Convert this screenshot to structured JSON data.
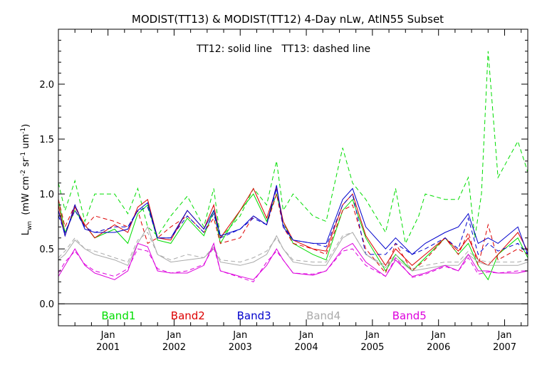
{
  "chart_data": {
    "type": "line",
    "title": "MODIST(TT13) & MODIST(TT12) 4-Day nLw, AtlN55 Subset",
    "annotation": "TT12: solid line   TT13: dashed line",
    "ylabel_main": "L",
    "ylabel_sub": "wn",
    "ylabel_rest": "(mW cm",
    "ylabel_exp1": "-2",
    "ylabel_sr": "sr",
    "ylabel_exp2": "-1",
    "ylabel_um": "um",
    "ylabel_exp3": "-1",
    "ylabel_close": ")",
    "xlim": [
      2000.25,
      2007.35
    ],
    "ylim": [
      -0.2,
      2.5
    ],
    "yticks": [
      0.0,
      0.5,
      1.0,
      1.5,
      2.0
    ],
    "ytick_labels": [
      "0.0",
      "0.5",
      "1.0",
      "1.5",
      "2.0"
    ],
    "xticks": [
      {
        "value": 2001.0,
        "top": "Jan",
        "bottom": "2001"
      },
      {
        "value": 2002.0,
        "top": "Jan",
        "bottom": "2002"
      },
      {
        "value": 2003.0,
        "top": "Jan",
        "bottom": "2003"
      },
      {
        "value": 2004.0,
        "top": "Jan",
        "bottom": "2004"
      },
      {
        "value": 2005.0,
        "top": "Jan",
        "bottom": "2005"
      },
      {
        "value": 2006.0,
        "top": "Jan",
        "bottom": "2006"
      },
      {
        "value": 2007.0,
        "top": "Jan",
        "bottom": "2007"
      }
    ],
    "zero_line": 0.0,
    "colors": {
      "Band1": "#00dd00",
      "Band2": "#dd0000",
      "Band3": "#0000cc",
      "Band4": "#aaaaaa",
      "Band5": "#dd00dd"
    },
    "legend": [
      {
        "name": "Band1",
        "x": 2000.9
      },
      {
        "name": "Band2",
        "x": 2001.95
      },
      {
        "name": "Band3",
        "x": 2002.95
      },
      {
        "name": "Band4",
        "x": 2004.0
      },
      {
        "name": "Band5",
        "x": 2005.3
      }
    ],
    "series": [
      {
        "band": "Band1",
        "style": "solid",
        "x": [
          2000.25,
          2000.35,
          2000.5,
          2000.65,
          2000.8,
          2001.1,
          2001.3,
          2001.45,
          2001.6,
          2001.75,
          2001.95,
          2002.2,
          2002.45,
          2002.6,
          2002.7,
          2003.0,
          2003.2,
          2003.4,
          2003.55,
          2003.65,
          2003.8,
          2004.1,
          2004.3,
          2004.55,
          2004.7,
          2004.9,
          2005.2,
          2005.35,
          2005.6,
          2005.8,
          2006.1,
          2006.3,
          2006.45,
          2006.6,
          2006.75,
          2006.9,
          2007.2,
          2007.35
        ],
        "y": [
          0.95,
          0.65,
          0.85,
          0.72,
          0.6,
          0.68,
          0.55,
          0.82,
          0.9,
          0.58,
          0.55,
          0.78,
          0.62,
          0.85,
          0.55,
          0.85,
          1.0,
          0.75,
          1.0,
          0.75,
          0.55,
          0.45,
          0.4,
          0.85,
          0.95,
          0.6,
          0.3,
          0.45,
          0.3,
          0.42,
          0.6,
          0.45,
          0.55,
          0.35,
          0.22,
          0.45,
          0.6,
          0.42
        ]
      },
      {
        "band": "Band1",
        "style": "dashed",
        "x": [
          2000.25,
          2000.35,
          2000.5,
          2000.65,
          2000.8,
          2001.1,
          2001.3,
          2001.45,
          2001.6,
          2001.75,
          2001.95,
          2002.2,
          2002.45,
          2002.6,
          2002.7,
          2003.0,
          2003.2,
          2003.4,
          2003.55,
          2003.65,
          2003.8,
          2004.1,
          2004.3,
          2004.55,
          2004.7,
          2004.9,
          2005.2,
          2005.35,
          2005.5,
          2005.7,
          2005.8,
          2006.1,
          2006.3,
          2006.45,
          2006.55,
          2006.65,
          2006.75,
          2006.9,
          2007.2,
          2007.35
        ],
        "y": [
          1.1,
          0.85,
          1.12,
          0.75,
          1.0,
          1.0,
          0.82,
          1.05,
          0.7,
          0.62,
          0.8,
          0.98,
          0.7,
          1.05,
          0.6,
          0.8,
          1.05,
          0.9,
          1.3,
          0.85,
          1.0,
          0.8,
          0.75,
          1.42,
          1.1,
          0.95,
          0.65,
          1.05,
          0.55,
          0.8,
          1.0,
          0.95,
          0.95,
          1.15,
          0.6,
          1.0,
          2.3,
          1.15,
          1.48,
          1.2
        ]
      },
      {
        "band": "Band2",
        "style": "solid",
        "x": [
          2000.25,
          2000.35,
          2000.5,
          2000.65,
          2000.8,
          2001.1,
          2001.3,
          2001.45,
          2001.6,
          2001.75,
          2001.95,
          2002.2,
          2002.45,
          2002.6,
          2002.7,
          2003.0,
          2003.2,
          2003.4,
          2003.55,
          2003.65,
          2003.8,
          2004.1,
          2004.3,
          2004.55,
          2004.7,
          2004.9,
          2005.2,
          2005.35,
          2005.6,
          2005.8,
          2006.1,
          2006.3,
          2006.45,
          2006.6,
          2006.75,
          2006.9,
          2007.2,
          2007.35
        ],
        "y": [
          0.9,
          0.62,
          0.88,
          0.72,
          0.6,
          0.72,
          0.65,
          0.88,
          0.95,
          0.6,
          0.58,
          0.85,
          0.68,
          0.9,
          0.6,
          0.85,
          1.05,
          0.78,
          1.05,
          0.75,
          0.58,
          0.5,
          0.48,
          0.9,
          1.0,
          0.62,
          0.35,
          0.5,
          0.35,
          0.45,
          0.6,
          0.48,
          0.6,
          0.4,
          0.35,
          0.45,
          0.65,
          0.48
        ]
      },
      {
        "band": "Band2",
        "style": "dashed",
        "x": [
          2000.25,
          2000.35,
          2000.5,
          2000.65,
          2000.8,
          2001.1,
          2001.3,
          2001.45,
          2001.6,
          2001.75,
          2001.95,
          2002.2,
          2002.45,
          2002.6,
          2002.7,
          2003.0,
          2003.2,
          2003.4,
          2003.55,
          2003.65,
          2003.8,
          2004.1,
          2004.3,
          2004.55,
          2004.7,
          2004.9,
          2005.2,
          2005.35,
          2005.6,
          2005.8,
          2006.1,
          2006.3,
          2006.45,
          2006.6,
          2006.75,
          2006.9,
          2007.2,
          2007.35
        ],
        "y": [
          0.95,
          0.7,
          0.9,
          0.7,
          0.8,
          0.75,
          0.7,
          0.85,
          0.55,
          0.6,
          0.7,
          0.8,
          0.65,
          0.78,
          0.55,
          0.6,
          0.8,
          0.72,
          1.0,
          0.7,
          0.55,
          0.5,
          0.45,
          0.85,
          0.9,
          0.5,
          0.28,
          0.55,
          0.3,
          0.4,
          0.6,
          0.45,
          0.65,
          0.35,
          0.72,
          0.4,
          0.5,
          0.45
        ]
      },
      {
        "band": "Band3",
        "style": "solid",
        "x": [
          2000.25,
          2000.35,
          2000.5,
          2000.65,
          2000.8,
          2001.1,
          2001.3,
          2001.45,
          2001.6,
          2001.75,
          2001.95,
          2002.2,
          2002.45,
          2002.6,
          2002.7,
          2003.0,
          2003.2,
          2003.4,
          2003.55,
          2003.65,
          2003.8,
          2004.1,
          2004.3,
          2004.55,
          2004.7,
          2004.9,
          2005.2,
          2005.35,
          2005.6,
          2005.8,
          2006.1,
          2006.3,
          2006.45,
          2006.6,
          2006.75,
          2006.9,
          2007.2,
          2007.35
        ],
        "y": [
          0.85,
          0.62,
          0.9,
          0.68,
          0.65,
          0.65,
          0.68,
          0.85,
          0.92,
          0.6,
          0.6,
          0.85,
          0.68,
          0.85,
          0.62,
          0.68,
          0.8,
          0.72,
          1.08,
          0.7,
          0.58,
          0.55,
          0.55,
          0.95,
          1.05,
          0.7,
          0.5,
          0.6,
          0.45,
          0.55,
          0.65,
          0.7,
          0.82,
          0.55,
          0.6,
          0.55,
          0.7,
          0.45
        ]
      },
      {
        "band": "Band3",
        "style": "dashed",
        "x": [
          2000.25,
          2000.35,
          2000.5,
          2000.65,
          2000.8,
          2001.1,
          2001.3,
          2001.45,
          2001.6,
          2001.75,
          2001.95,
          2002.2,
          2002.45,
          2002.6,
          2002.7,
          2003.0,
          2003.2,
          2003.4,
          2003.55,
          2003.65,
          2003.8,
          2004.1,
          2004.3,
          2004.55,
          2004.7,
          2004.9,
          2005.2,
          2005.35,
          2005.6,
          2005.8,
          2006.1,
          2006.3,
          2006.45,
          2006.6,
          2006.75,
          2006.9,
          2007.2,
          2007.35
        ],
        "y": [
          0.8,
          0.65,
          0.85,
          0.7,
          0.65,
          0.7,
          0.7,
          0.85,
          0.88,
          0.6,
          0.6,
          0.8,
          0.65,
          0.82,
          0.6,
          0.68,
          0.78,
          0.72,
          1.05,
          0.72,
          0.58,
          0.55,
          0.52,
          0.9,
          1.0,
          0.45,
          0.45,
          0.55,
          0.45,
          0.5,
          0.6,
          0.5,
          0.78,
          0.45,
          0.55,
          0.48,
          0.55,
          0.45
        ]
      },
      {
        "band": "Band4",
        "style": "solid",
        "x": [
          2000.25,
          2000.35,
          2000.5,
          2000.65,
          2000.8,
          2001.1,
          2001.3,
          2001.45,
          2001.6,
          2001.75,
          2001.95,
          2002.2,
          2002.45,
          2002.6,
          2002.7,
          2003.0,
          2003.2,
          2003.4,
          2003.55,
          2003.65,
          2003.8,
          2004.1,
          2004.3,
          2004.55,
          2004.7,
          2004.9,
          2005.2,
          2005.35,
          2005.6,
          2005.8,
          2006.1,
          2006.3,
          2006.45,
          2006.6,
          2006.75,
          2006.9,
          2007.2,
          2007.35
        ],
        "y": [
          0.4,
          0.45,
          0.58,
          0.5,
          0.45,
          0.4,
          0.35,
          0.55,
          0.7,
          0.45,
          0.38,
          0.4,
          0.42,
          0.5,
          0.38,
          0.35,
          0.38,
          0.45,
          0.62,
          0.5,
          0.38,
          0.35,
          0.35,
          0.6,
          0.65,
          0.45,
          0.33,
          0.42,
          0.3,
          0.32,
          0.35,
          0.35,
          0.45,
          0.38,
          0.35,
          0.35,
          0.35,
          0.38
        ]
      },
      {
        "band": "Band4",
        "style": "dashed",
        "x": [
          2000.25,
          2000.35,
          2000.5,
          2000.65,
          2000.8,
          2001.1,
          2001.3,
          2001.45,
          2001.6,
          2001.75,
          2001.95,
          2002.2,
          2002.45,
          2002.6,
          2002.7,
          2003.0,
          2003.2,
          2003.4,
          2003.55,
          2003.65,
          2003.8,
          2004.1,
          2004.3,
          2004.55,
          2004.7,
          2004.9,
          2005.2,
          2005.35,
          2005.6,
          2005.8,
          2006.1,
          2006.3,
          2006.45,
          2006.6,
          2006.75,
          2006.9,
          2007.2,
          2007.35
        ],
        "y": [
          0.42,
          0.48,
          0.6,
          0.5,
          0.48,
          0.42,
          0.38,
          0.58,
          0.65,
          0.45,
          0.4,
          0.45,
          0.42,
          0.52,
          0.4,
          0.38,
          0.42,
          0.48,
          0.6,
          0.5,
          0.4,
          0.38,
          0.38,
          0.62,
          0.65,
          0.45,
          0.35,
          0.45,
          0.32,
          0.35,
          0.38,
          0.38,
          0.48,
          0.4,
          0.38,
          0.38,
          0.38,
          0.4
        ]
      },
      {
        "band": "Band5",
        "style": "solid",
        "x": [
          2000.25,
          2000.35,
          2000.5,
          2000.65,
          2000.8,
          2001.1,
          2001.3,
          2001.45,
          2001.6,
          2001.75,
          2001.95,
          2002.2,
          2002.45,
          2002.6,
          2002.7,
          2003.0,
          2003.2,
          2003.4,
          2003.55,
          2003.65,
          2003.8,
          2004.1,
          2004.3,
          2004.55,
          2004.7,
          2004.9,
          2005.2,
          2005.35,
          2005.6,
          2005.8,
          2006.1,
          2006.3,
          2006.45,
          2006.6,
          2006.75,
          2006.9,
          2007.2,
          2007.35
        ],
        "y": [
          0.25,
          0.35,
          0.5,
          0.35,
          0.28,
          0.22,
          0.3,
          0.55,
          0.52,
          0.3,
          0.28,
          0.28,
          0.35,
          0.55,
          0.3,
          0.25,
          0.22,
          0.35,
          0.5,
          0.4,
          0.28,
          0.26,
          0.3,
          0.5,
          0.55,
          0.38,
          0.25,
          0.4,
          0.25,
          0.28,
          0.35,
          0.3,
          0.45,
          0.3,
          0.3,
          0.28,
          0.28,
          0.3
        ]
      },
      {
        "band": "Band5",
        "style": "dashed",
        "x": [
          2000.25,
          2000.35,
          2000.5,
          2000.65,
          2000.8,
          2001.1,
          2001.3,
          2001.45,
          2001.6,
          2001.75,
          2001.95,
          2002.2,
          2002.45,
          2002.6,
          2002.7,
          2003.0,
          2003.2,
          2003.4,
          2003.55,
          2003.65,
          2003.8,
          2004.1,
          2004.3,
          2004.55,
          2004.7,
          2004.9,
          2005.2,
          2005.35,
          2005.6,
          2005.8,
          2006.1,
          2006.3,
          2006.45,
          2006.6,
          2006.75,
          2006.9,
          2007.2,
          2007.35
        ],
        "y": [
          0.28,
          0.38,
          0.48,
          0.36,
          0.3,
          0.25,
          0.32,
          0.5,
          0.48,
          0.32,
          0.28,
          0.3,
          0.36,
          0.52,
          0.3,
          0.24,
          0.2,
          0.38,
          0.48,
          0.4,
          0.28,
          0.27,
          0.3,
          0.48,
          0.5,
          0.35,
          0.25,
          0.42,
          0.24,
          0.27,
          0.34,
          0.3,
          0.42,
          0.27,
          0.29,
          0.28,
          0.3,
          0.3
        ]
      }
    ]
  }
}
